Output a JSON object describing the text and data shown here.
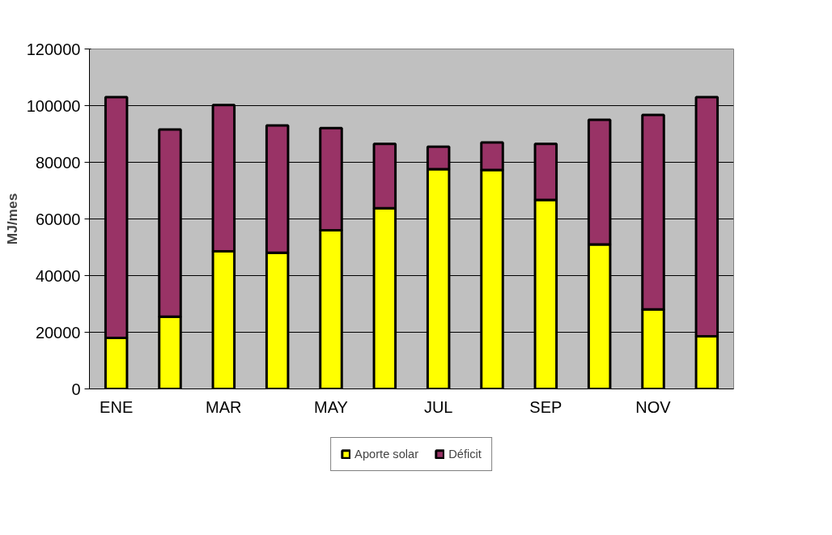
{
  "chart_data": {
    "type": "bar",
    "stacked": true,
    "ylabel": "MJ/mes",
    "categories": [
      "ENE",
      null,
      "MAR",
      null,
      "MAY",
      null,
      "JUL",
      null,
      "SEP",
      null,
      "NOV",
      null
    ],
    "series": [
      {
        "name": "Aporte solar",
        "color": "#ffff00",
        "values": [
          18000,
          25500,
          48600,
          48100,
          56000,
          63800,
          77600,
          77300,
          66700,
          51000,
          28100,
          18600
        ]
      },
      {
        "name": "Déficit",
        "color": "#993366",
        "values": [
          85000,
          66100,
          51600,
          44900,
          36100,
          22700,
          7900,
          9700,
          19800,
          44000,
          68600,
          84400
        ]
      }
    ],
    "ylim": [
      0,
      120000
    ],
    "yticks": [
      0,
      20000,
      40000,
      60000,
      80000,
      100000,
      120000
    ],
    "grid": "y",
    "legend": "bottom"
  }
}
